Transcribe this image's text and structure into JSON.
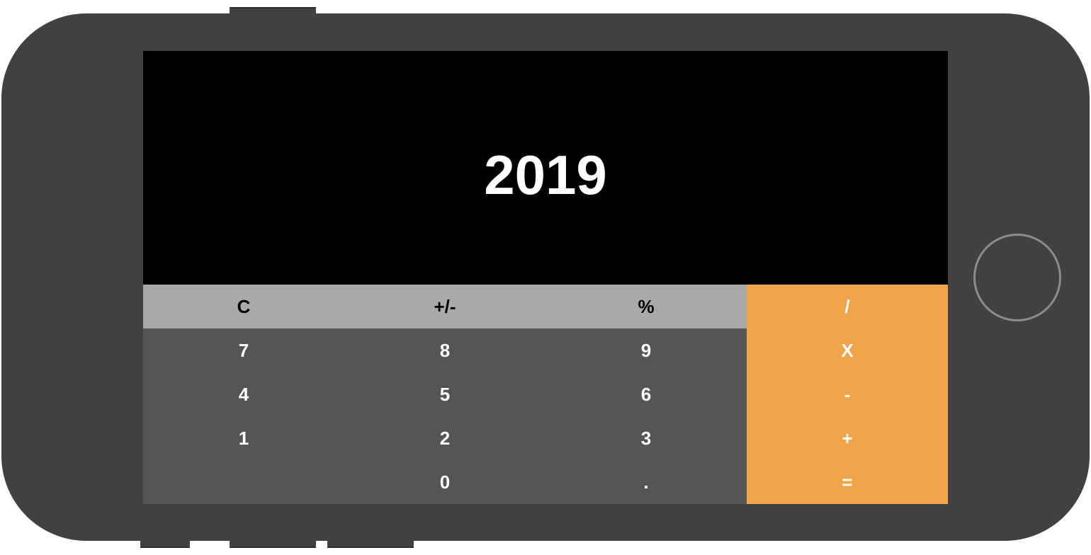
{
  "display": {
    "value": "2019"
  },
  "keypad": {
    "rows": [
      [
        {
          "label": "C",
          "kind": "fn",
          "name": "clear-button"
        },
        {
          "label": "+/-",
          "kind": "fn",
          "name": "sign-toggle-button"
        },
        {
          "label": "%",
          "kind": "fn",
          "name": "percent-button"
        },
        {
          "label": "/",
          "kind": "op",
          "name": "divide-button"
        }
      ],
      [
        {
          "label": "7",
          "kind": "num",
          "name": "digit-7-button"
        },
        {
          "label": "8",
          "kind": "num",
          "name": "digit-8-button"
        },
        {
          "label": "9",
          "kind": "num",
          "name": "digit-9-button"
        },
        {
          "label": "X",
          "kind": "op",
          "name": "multiply-button"
        }
      ],
      [
        {
          "label": "4",
          "kind": "num",
          "name": "digit-4-button"
        },
        {
          "label": "5",
          "kind": "num",
          "name": "digit-5-button"
        },
        {
          "label": "6",
          "kind": "num",
          "name": "digit-6-button"
        },
        {
          "label": "-",
          "kind": "op",
          "name": "subtract-button"
        }
      ],
      [
        {
          "label": "1",
          "kind": "num",
          "name": "digit-1-button"
        },
        {
          "label": "2",
          "kind": "num",
          "name": "digit-2-button"
        },
        {
          "label": "3",
          "kind": "num",
          "name": "digit-3-button"
        },
        {
          "label": "+",
          "kind": "op",
          "name": "add-button"
        }
      ],
      [
        {
          "label": "",
          "kind": "num",
          "name": "blank-button"
        },
        {
          "label": "0",
          "kind": "num",
          "name": "digit-0-button"
        },
        {
          "label": ".",
          "kind": "num",
          "name": "decimal-button"
        },
        {
          "label": "=",
          "kind": "op",
          "name": "equals-button"
        }
      ]
    ]
  },
  "colors": {
    "device_body": "#414141",
    "screen_background": "#000000",
    "function_key": "#a9a9a9",
    "number_key": "#555555",
    "operator_key": "#f0a54a"
  }
}
